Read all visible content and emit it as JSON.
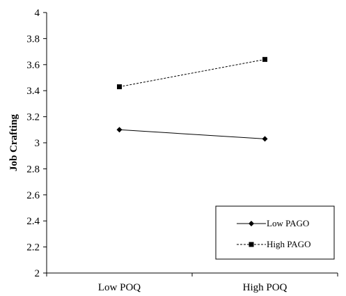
{
  "chart_data": {
    "type": "line",
    "categories": [
      "Low POQ",
      "High POQ"
    ],
    "series": [
      {
        "name": "Low PAGO",
        "values": [
          3.1,
          3.03
        ],
        "marker": "diamond",
        "line_style": "solid"
      },
      {
        "name": "High PAGO",
        "values": [
          3.43,
          3.64
        ],
        "marker": "square",
        "line_style": "dashed"
      }
    ],
    "ylabel": "Job Crafting",
    "xlabel": "",
    "ylim": [
      2,
      4
    ],
    "yticks": [
      "2",
      "2.2",
      "2.4",
      "2.6",
      "2.8",
      "3",
      "3.2",
      "3.4",
      "3.6",
      "3.8",
      "4"
    ],
    "grid": false,
    "legend_position": "bottom-right",
    "colors": {
      "line": "#000000",
      "background": "#ffffff"
    }
  }
}
